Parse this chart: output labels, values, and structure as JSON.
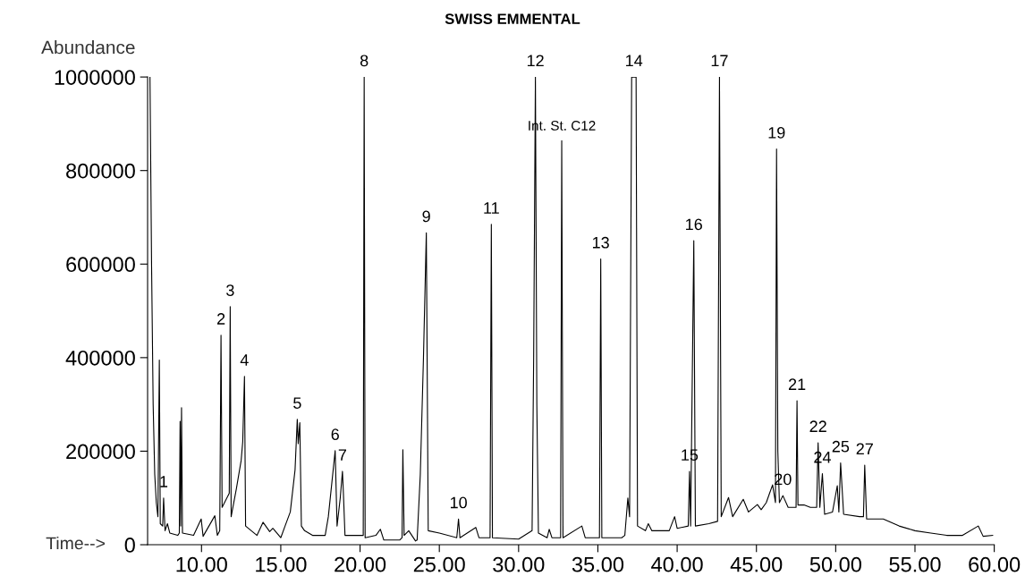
{
  "chart_data": {
    "type": "line",
    "title": "SWISS EMMENTAL",
    "xlabel": "Time-->",
    "ylabel": "Abundance",
    "xlim": [
      6.6,
      60
    ],
    "xticks": [
      {
        "value": 10,
        "label": "10.00"
      },
      {
        "value": 15,
        "label": "15.00"
      },
      {
        "value": 20,
        "label": "20.00"
      },
      {
        "value": 25,
        "label": "25.00"
      },
      {
        "value": 30,
        "label": "30.00"
      },
      {
        "value": 35,
        "label": "35.00"
      },
      {
        "value": 40,
        "label": "40.00"
      },
      {
        "value": 45,
        "label": "45.00"
      },
      {
        "value": 50,
        "label": "50.00"
      },
      {
        "value": 55,
        "label": "55.00"
      },
      {
        "value": 60,
        "label": "60.00"
      }
    ],
    "ylim": [
      0,
      1000000
    ],
    "yticks": [
      0,
      200000,
      400000,
      600000,
      800000,
      1000000
    ],
    "grid": false,
    "marker": "none",
    "line_style": "solid",
    "series": [
      {
        "color": "#000000",
        "x": [
          6.75,
          6.85,
          6.95,
          7.05,
          7.15,
          7.25,
          7.34,
          7.4,
          7.55,
          7.61,
          7.7,
          7.85,
          8.0,
          8.5,
          8.6,
          8.65,
          8.69,
          8.74,
          8.8,
          9.5,
          9.98,
          10.1,
          10.84,
          11.0,
          11.15,
          11.23,
          11.3,
          11.75,
          11.81,
          11.87,
          12.2,
          12.5,
          12.6,
          12.71,
          12.78,
          13.5,
          13.88,
          14.3,
          14.5,
          15.0,
          15.27,
          15.6,
          15.9,
          16.04,
          16.1,
          16.2,
          16.3,
          16.5,
          17.0,
          17.8,
          18.0,
          18.43,
          18.55,
          18.75,
          18.89,
          18.95,
          19.05,
          19.7,
          20.2,
          20.26,
          20.32,
          21.0,
          21.28,
          21.5,
          22.5,
          22.65,
          22.7,
          22.78,
          23.07,
          23.5,
          23.6,
          23.8,
          24.0,
          24.18,
          24.3,
          25.0,
          26.1,
          26.21,
          26.3,
          27.3,
          27.5,
          28.2,
          28.28,
          28.35,
          30.0,
          30.85,
          30.95,
          31.06,
          31.15,
          31.25,
          31.8,
          31.93,
          32.1,
          32.65,
          32.72,
          32.8,
          33.99,
          34.2,
          35.1,
          35.18,
          35.25,
          36.5,
          36.7,
          36.89,
          37.0,
          37.13,
          37.41,
          37.5,
          38.0,
          38.18,
          38.4,
          39.5,
          39.84,
          40.0,
          40.7,
          40.78,
          40.85,
          41.05,
          41.15,
          42.0,
          42.55,
          42.67,
          42.78,
          43.24,
          43.5,
          44.17,
          44.5,
          45.06,
          45.3,
          45.62,
          45.81,
          46.02,
          46.2,
          46.27,
          46.35,
          46.45,
          46.67,
          47.0,
          47.5,
          47.56,
          47.62,
          48.0,
          48.4,
          48.8,
          48.89,
          49.0,
          49.16,
          49.3,
          49.8,
          50.1,
          50.2,
          50.31,
          50.5,
          51.5,
          51.75,
          51.83,
          51.95,
          53.0,
          54.0,
          55.0,
          56.0,
          57.0,
          58.0,
          58.99,
          59.3,
          59.9
        ],
        "values": [
          1000000,
          600000,
          300000,
          150000,
          90000,
          60000,
          395000,
          45000,
          40000,
          100000,
          30000,
          45000,
          25000,
          20000,
          25000,
          264000,
          40000,
          293000,
          25000,
          20000,
          55000,
          18000,
          62000,
          20000,
          30000,
          448000,
          80000,
          110000,
          509000,
          60000,
          120000,
          180000,
          220000,
          360000,
          40000,
          20000,
          48000,
          28000,
          35000,
          15000,
          40000,
          70000,
          160000,
          268000,
          216000,
          261000,
          40000,
          30000,
          20000,
          20000,
          60000,
          201000,
          40000,
          100000,
          157000,
          110000,
          20000,
          20000,
          20000,
          1000000,
          15000,
          20000,
          33000,
          10000,
          10000,
          15000,
          203000,
          20000,
          30000,
          8000,
          10000,
          150000,
          400000,
          667000,
          30000,
          25000,
          15000,
          55000,
          15000,
          37000,
          15000,
          15000,
          685000,
          15000,
          12000,
          30000,
          400000,
          1000000,
          300000,
          25000,
          15000,
          33000,
          15000,
          15000,
          864000,
          15000,
          40000,
          15000,
          15000,
          611000,
          15000,
          15000,
          20000,
          100000,
          60000,
          1000000,
          1000000,
          40000,
          30000,
          45000,
          30000,
          30000,
          60000,
          35000,
          40000,
          157000,
          40000,
          650000,
          40000,
          45000,
          50000,
          1000000,
          60000,
          101000,
          60000,
          97000,
          70000,
          86000,
          75000,
          90000,
          108000,
          128000,
          90000,
          846000,
          200000,
          90000,
          105000,
          80000,
          80000,
          308000,
          85000,
          85000,
          80000,
          80000,
          218000,
          80000,
          152000,
          65000,
          70000,
          126000,
          70000,
          175000,
          65000,
          60000,
          60000,
          170000,
          55000,
          55000,
          40000,
          30000,
          25000,
          20000,
          20000,
          40000,
          18000,
          20000
        ]
      }
    ],
    "annotations": [
      {
        "text": "1",
        "x": 7.61,
        "y": 100000
      },
      {
        "text": "2",
        "x": 11.23,
        "y": 448000
      },
      {
        "text": "3",
        "x": 11.81,
        "y": 509000
      },
      {
        "text": "4",
        "x": 12.71,
        "y": 360000
      },
      {
        "text": "5",
        "x": 16.04,
        "y": 268000
      },
      {
        "text": "6",
        "x": 18.43,
        "y": 201000
      },
      {
        "text": "7",
        "x": 18.89,
        "y": 157000
      },
      {
        "text": "8",
        "x": 20.26,
        "y": 1000000
      },
      {
        "text": "9",
        "x": 24.18,
        "y": 667000
      },
      {
        "text": "10",
        "x": 26.21,
        "y": 55000
      },
      {
        "text": "11",
        "x": 28.28,
        "y": 685000
      },
      {
        "text": "12",
        "x": 31.06,
        "y": 1000000
      },
      {
        "text": "Int. St. C12",
        "x": 32.72,
        "y": 864000
      },
      {
        "text": "13",
        "x": 35.18,
        "y": 611000
      },
      {
        "text": "14",
        "x": 37.27,
        "y": 1000000
      },
      {
        "text": "15",
        "x": 40.78,
        "y": 157000
      },
      {
        "text": "16",
        "x": 41.05,
        "y": 650000
      },
      {
        "text": "17",
        "x": 42.67,
        "y": 1000000
      },
      {
        "text": "19",
        "x": 46.27,
        "y": 846000
      },
      {
        "text": "20",
        "x": 46.67,
        "y": 105000
      },
      {
        "text": "21",
        "x": 47.56,
        "y": 308000
      },
      {
        "text": "22",
        "x": 48.89,
        "y": 218000
      },
      {
        "text": "24",
        "x": 49.16,
        "y": 152000
      },
      {
        "text": "25",
        "x": 50.31,
        "y": 175000
      },
      {
        "text": "27",
        "x": 51.83,
        "y": 170000
      }
    ]
  }
}
